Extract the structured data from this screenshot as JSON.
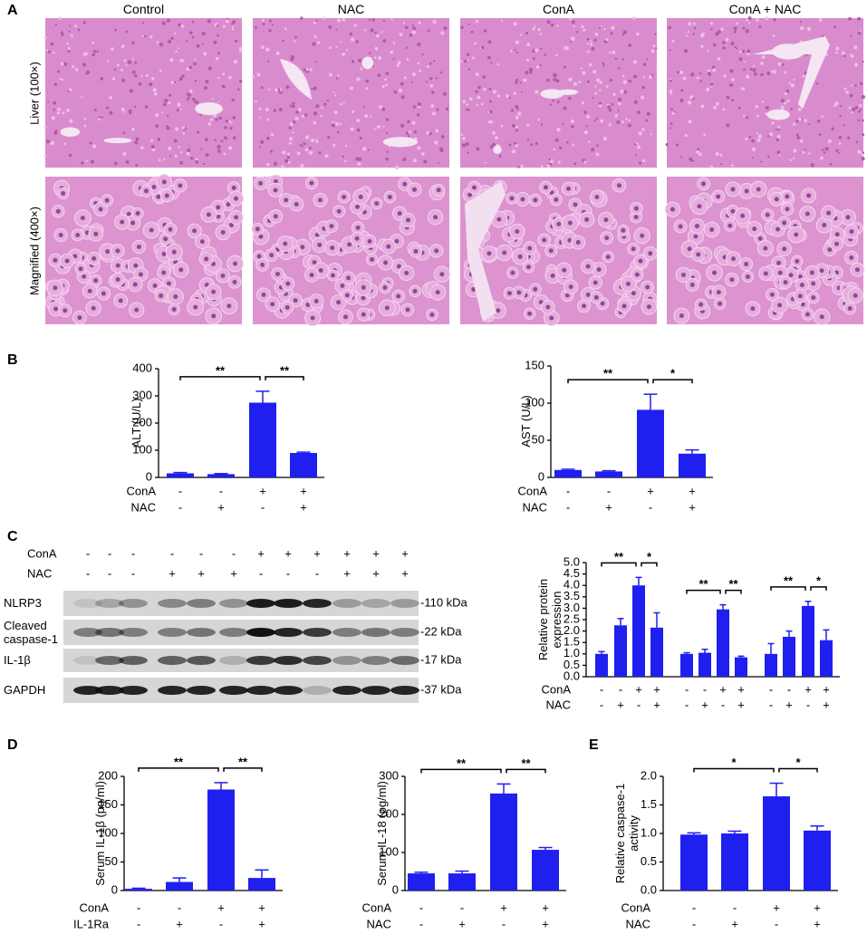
{
  "panel_labels": [
    "A",
    "B",
    "C",
    "D",
    "E"
  ],
  "histology": {
    "columns": [
      "Control",
      "NAC",
      "ConA",
      "ConA + NAC"
    ],
    "rows": [
      "Liver (100×)",
      "Magnified (400×)"
    ]
  },
  "western_blot": {
    "conditions": [
      {
        "name": "ConA",
        "signs": [
          "-",
          "-",
          "-",
          "-",
          "-",
          "-",
          "+",
          "+",
          "+",
          "+",
          "+",
          "+"
        ]
      },
      {
        "name": "NAC",
        "signs": [
          "-",
          "-",
          "-",
          "+",
          "+",
          "+",
          "-",
          "-",
          "-",
          "+",
          "+",
          "+"
        ]
      }
    ],
    "rows": [
      {
        "label": "NLRP3",
        "size": "-110 kDa"
      },
      {
        "label": "Cleaved caspase-1",
        "size": "-22 kDa"
      },
      {
        "label": "IL-1β",
        "size": "-17 kDa"
      },
      {
        "label": "GAPDH",
        "size": "-37 kDa"
      }
    ]
  },
  "chart_data": [
    {
      "type": "bar",
      "y_label": "ALT (U/L)",
      "values": [
        15,
        12,
        275,
        90
      ],
      "errors": [
        3,
        2,
        42,
        3
      ],
      "color": "#1f1ff0",
      "ylim": [
        0,
        400
      ],
      "yticks": [
        0,
        100,
        200,
        300,
        400
      ],
      "conditions": [
        {
          "name": "ConA",
          "signs": [
            "-",
            "-",
            "+",
            "+"
          ]
        },
        {
          "name": "NAC",
          "signs": [
            "-",
            "+",
            "-",
            "+"
          ]
        }
      ],
      "significance": [
        "**",
        "**"
      ]
    },
    {
      "type": "bar",
      "y_label": "AST (U/L)",
      "values": [
        10,
        8,
        91,
        32
      ],
      "errors": [
        1,
        1,
        21,
        5
      ],
      "color": "#1f1ff0",
      "ylim": [
        0,
        150
      ],
      "yticks": [
        0,
        50,
        100,
        150
      ],
      "conditions": [
        {
          "name": "ConA",
          "signs": [
            "-",
            "-",
            "+",
            "+"
          ]
        },
        {
          "name": "NAC",
          "signs": [
            "-",
            "+",
            "-",
            "+"
          ]
        }
      ],
      "significance": [
        "**",
        "*"
      ]
    },
    {
      "type": "bar",
      "y_label": "Relative protein expression",
      "values": [
        1.0,
        2.25,
        4.0,
        2.15,
        1.0,
        1.05,
        2.95,
        0.85,
        1.0,
        1.75,
        3.1,
        1.6
      ],
      "errors": [
        0.1,
        0.3,
        0.35,
        0.65,
        0.05,
        0.15,
        0.2,
        0.05,
        0.45,
        0.25,
        0.2,
        0.45
      ],
      "color": "#1f1ff0",
      "ylim": [
        0,
        5
      ],
      "yticks": [
        {
          "value": 0,
          "label": "0.0"
        },
        {
          "value": 0.5,
          "label": "0.5"
        },
        {
          "value": 1,
          "label": "1.0"
        },
        {
          "value": 1.5,
          "label": "1.5"
        },
        {
          "value": 2,
          "label": "2.0"
        },
        {
          "value": 2.5,
          "label": "2.5"
        },
        {
          "value": 3,
          "label": "3.0"
        },
        {
          "value": 3.5,
          "label": "3.5"
        },
        {
          "value": 4,
          "label": "4.0"
        },
        {
          "value": 4.5,
          "label": "4.5"
        },
        {
          "value": 5,
          "label": "5.0"
        }
      ],
      "conditions": [
        {
          "name": "ConA",
          "signs": [
            "-",
            "-",
            "+",
            "+",
            "-",
            "-",
            "+",
            "+",
            "-",
            "-",
            "+",
            "+"
          ]
        },
        {
          "name": "NAC",
          "signs": [
            "-",
            "+",
            "-",
            "+",
            "-",
            "+",
            "-",
            "+",
            "-",
            "+",
            "-",
            "+"
          ]
        }
      ],
      "significance": [
        "**",
        "*",
        "**",
        "**",
        "**",
        "*"
      ]
    },
    {
      "type": "bar",
      "y_label": "Serum IL-1β (pg/ml)",
      "values": [
        3,
        15,
        177,
        22
      ],
      "errors": [
        1,
        7,
        12,
        14
      ],
      "color": "#1f1ff0",
      "ylim": [
        0,
        200
      ],
      "yticks": [
        0,
        50,
        100,
        150,
        200
      ],
      "conditions": [
        {
          "name": "ConA",
          "signs": [
            "-",
            "-",
            "+",
            "+"
          ]
        },
        {
          "name": "IL-1Ra",
          "signs": [
            "-",
            "+",
            "-",
            "+"
          ]
        }
      ],
      "significance": [
        "**",
        "**"
      ]
    },
    {
      "type": "bar",
      "y_label": "Serum IL-18 (pg/ml)",
      "values": [
        45,
        45,
        255,
        107
      ],
      "errors": [
        3,
        6,
        25,
        6
      ],
      "color": "#1f1ff0",
      "ylim": [
        0,
        300
      ],
      "yticks": [
        0,
        100,
        200,
        300
      ],
      "conditions": [
        {
          "name": "ConA",
          "signs": [
            "-",
            "-",
            "+",
            "+"
          ]
        },
        {
          "name": "NAC",
          "signs": [
            "-",
            "+",
            "-",
            "+"
          ]
        }
      ],
      "significance": [
        "**",
        "**"
      ]
    },
    {
      "type": "bar",
      "y_label": "Relative caspase-1 activity",
      "values": [
        0.98,
        1.0,
        1.65,
        1.05
      ],
      "errors": [
        0.03,
        0.04,
        0.23,
        0.08
      ],
      "color": "#1f1ff0",
      "ylim": [
        0,
        2
      ],
      "yticks": [
        {
          "value": 0,
          "label": "0.0"
        },
        {
          "value": 0.5,
          "label": "0.5"
        },
        {
          "value": 1,
          "label": "1.0"
        },
        {
          "value": 1.5,
          "label": "1.5"
        },
        {
          "value": 2,
          "label": "2.0"
        }
      ],
      "conditions": [
        {
          "name": "ConA",
          "signs": [
            "-",
            "-",
            "+",
            "+"
          ]
        },
        {
          "name": "NAC",
          "signs": [
            "-",
            "+",
            "-",
            "+"
          ]
        }
      ],
      "significance": [
        "*",
        "*"
      ]
    }
  ]
}
